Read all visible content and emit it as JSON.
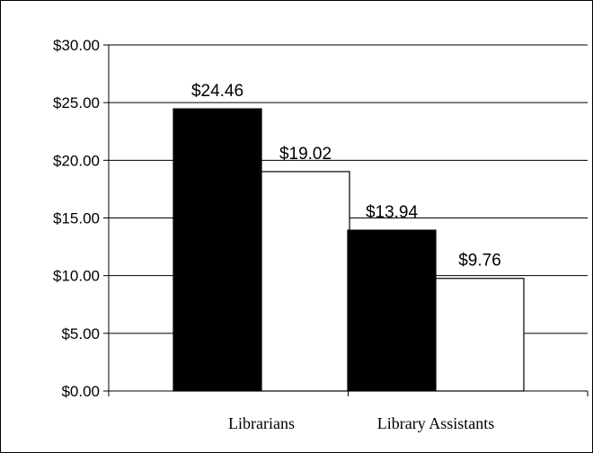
{
  "chart_data": {
    "type": "bar",
    "title": "",
    "xlabel": "",
    "ylabel": "",
    "categories": [
      "Librarians",
      "Library Assistants"
    ],
    "series": [
      {
        "values": [
          24.46,
          13.94
        ],
        "color": "#000000",
        "labels": [
          "$24.46",
          "$13.94"
        ]
      },
      {
        "values": [
          19.02,
          9.76
        ],
        "color": "#ffffff",
        "labels": [
          "$19.02",
          "$9.76"
        ]
      }
    ],
    "ylim": [
      0,
      30
    ],
    "y_ticks": [
      0,
      5,
      10,
      15,
      20,
      25,
      30
    ],
    "y_tick_labels": [
      "$0.00",
      "$5.00",
      "$10.00",
      "$15.00",
      "$20.00",
      "$25.00",
      "$30.00"
    ],
    "grid": true,
    "legend": "none"
  }
}
